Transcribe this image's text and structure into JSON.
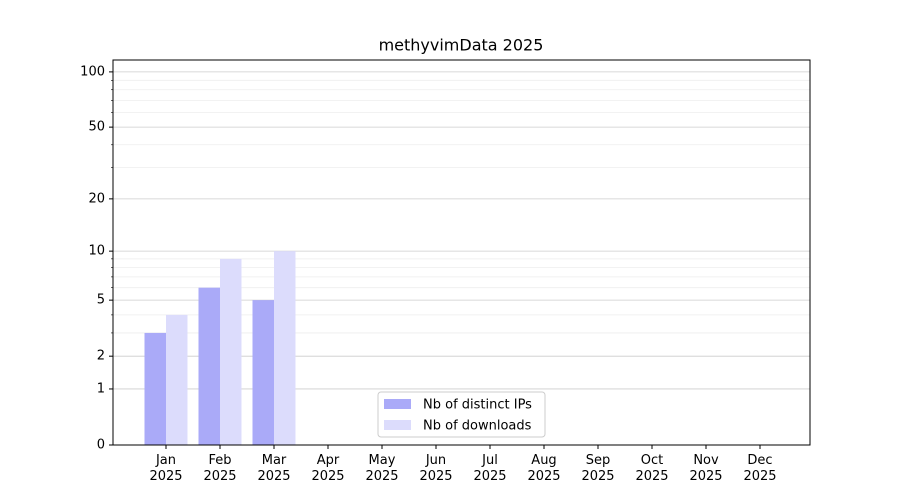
{
  "chart_data": {
    "type": "bar",
    "title": "methyvimData 2025",
    "categories": [
      "Jan\n2025",
      "Feb\n2025",
      "Mar\n2025",
      "Apr\n2025",
      "May\n2025",
      "Jun\n2025",
      "Jul\n2025",
      "Aug\n2025",
      "Sep\n2025",
      "Oct\n2025",
      "Nov\n2025",
      "Dec\n2025"
    ],
    "series": [
      {
        "name": "Nb of distinct IPs",
        "color": "#aaaaf8",
        "values": [
          3,
          6,
          5,
          0,
          0,
          0,
          0,
          0,
          0,
          0,
          0,
          0
        ]
      },
      {
        "name": "Nb of downloads",
        "color": "#dcdcfc",
        "values": [
          4,
          9,
          10,
          0,
          0,
          0,
          0,
          0,
          0,
          0,
          0,
          0
        ]
      }
    ],
    "yscale": "log1p",
    "ylim": [
      0,
      116
    ],
    "yticks": [
      0,
      1,
      2,
      5,
      10,
      20,
      50,
      100
    ],
    "yminorticks": [
      3,
      4,
      6,
      7,
      8,
      9,
      30,
      40,
      60,
      70,
      80,
      90
    ],
    "grid": true,
    "legend": "lower center"
  }
}
